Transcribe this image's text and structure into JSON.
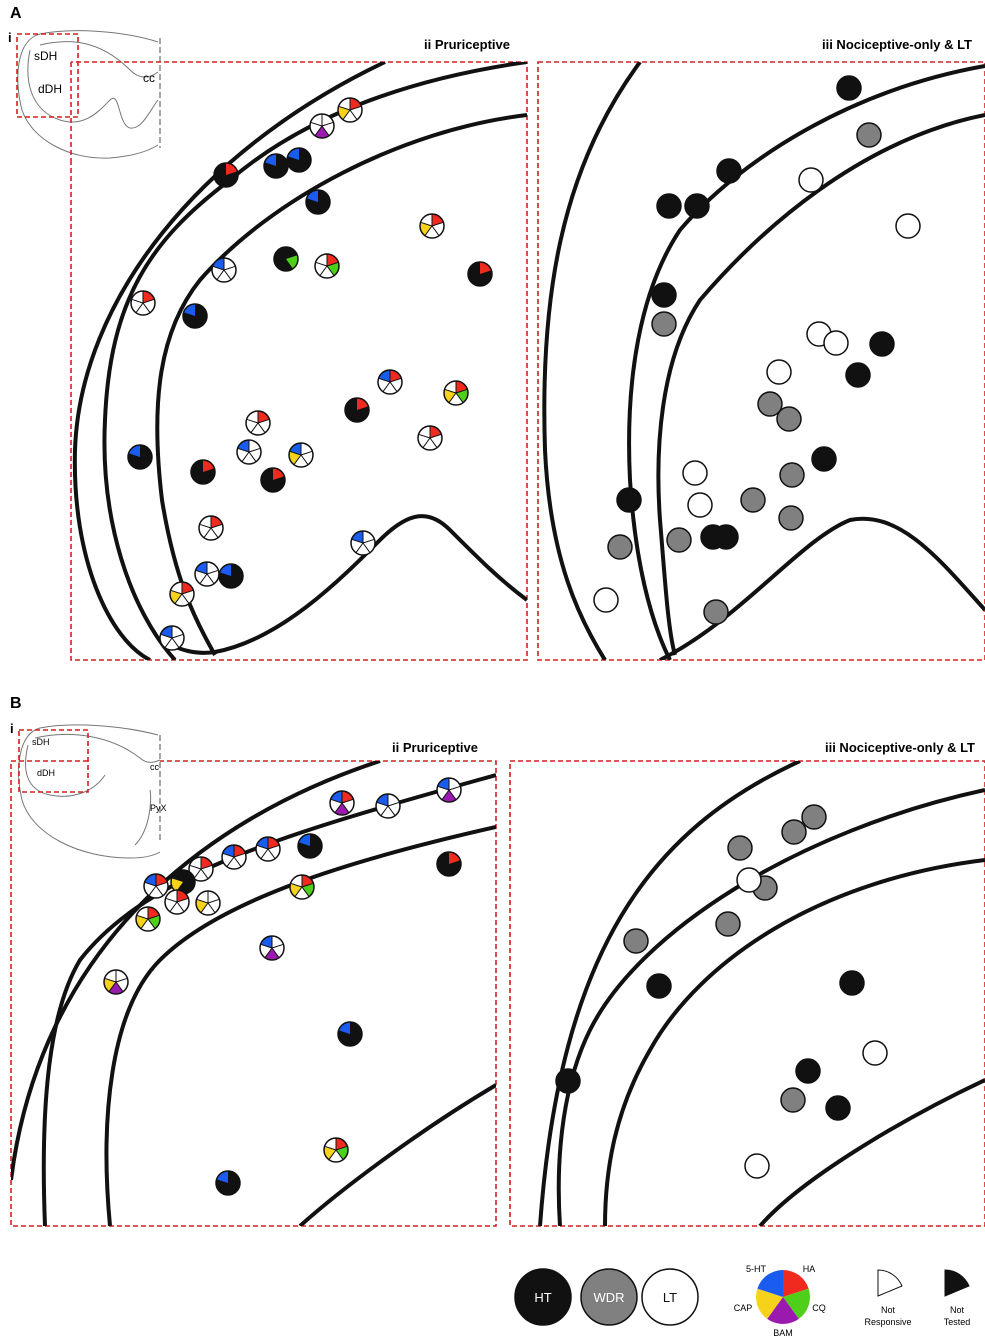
{
  "panels": [
    {
      "label": "A",
      "inset": {
        "label": "i",
        "regions": [
          "sDH",
          "dDH"
        ],
        "markers": [
          "cc"
        ]
      },
      "subpanels": [
        "ii Pruriceptive",
        "iii Nociceptive-only & LT"
      ]
    },
    {
      "label": "B",
      "inset": {
        "label": "i",
        "regions": [
          "sDH",
          "dDH"
        ],
        "markers": [
          "cc",
          "PyX"
        ]
      },
      "subpanels": [
        "ii Pruriceptive",
        "iii Nociceptive-only & LT"
      ]
    }
  ],
  "legend": {
    "cell_types": [
      "HT",
      "WDR",
      "LT"
    ],
    "agents": [
      "5-HT",
      "HA",
      "CQ",
      "BAM",
      "CAP"
    ],
    "not_responsive": [
      "Not",
      "Responsive"
    ],
    "not_tested": [
      "Not",
      "Tested"
    ]
  }
}
